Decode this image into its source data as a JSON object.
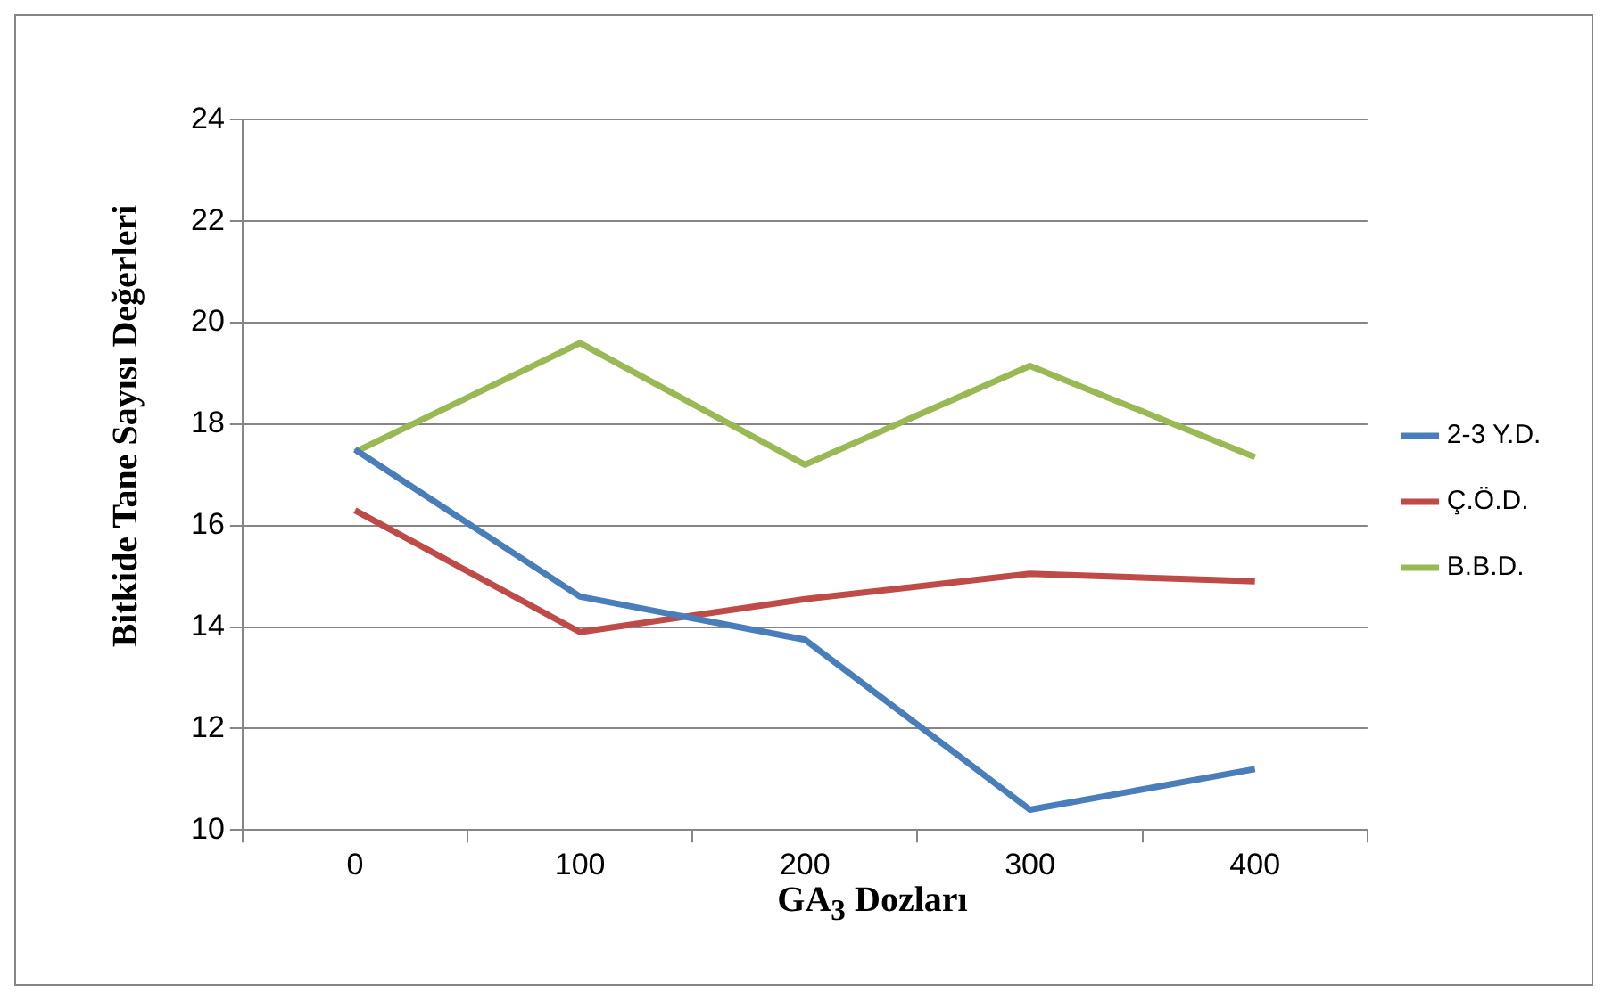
{
  "chart_data": {
    "type": "line",
    "xlabel": "GA$_{3}$ Dozları",
    "ylabel": "Bitkide Tane Sayısı Değerleri",
    "categories": [
      "0",
      "100",
      "200",
      "300",
      "400"
    ],
    "series": [
      {
        "name": "2-3 Y.D.",
        "color": "#4a7ebb",
        "values": [
          17.5,
          14.6,
          13.75,
          10.4,
          11.2
        ]
      },
      {
        "name": "Ç.Ö.D.",
        "color": "#be4b48",
        "values": [
          16.3,
          13.9,
          14.55,
          15.05,
          14.9
        ]
      },
      {
        "name": "B.B.D.",
        "color": "#98b954",
        "values": [
          17.45,
          19.6,
          17.2,
          19.15,
          17.35
        ]
      }
    ],
    "ylim": [
      10,
      24
    ],
    "yticks": [
      10,
      12,
      14,
      16,
      18,
      20,
      22,
      24
    ],
    "grid": "y",
    "legend": "right",
    "marker": "none",
    "line_style": "solid"
  }
}
